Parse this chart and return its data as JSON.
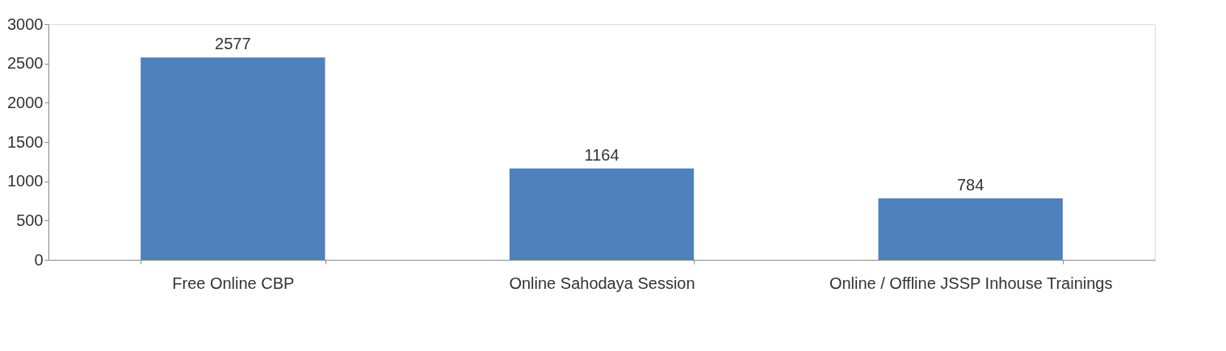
{
  "chart_data": {
    "type": "bar",
    "categories": [
      "Free Online CBP",
      "Online Sahodaya Session",
      "Online / Offline JSSP Inhouse Trainings"
    ],
    "values": [
      2577,
      1164,
      784
    ],
    "color": "#4f81bd",
    "ylim": [
      0,
      3000
    ],
    "yticks": [
      0,
      500,
      1000,
      1500,
      2000,
      2500,
      3000
    ],
    "data_labels": true,
    "grid": false
  }
}
